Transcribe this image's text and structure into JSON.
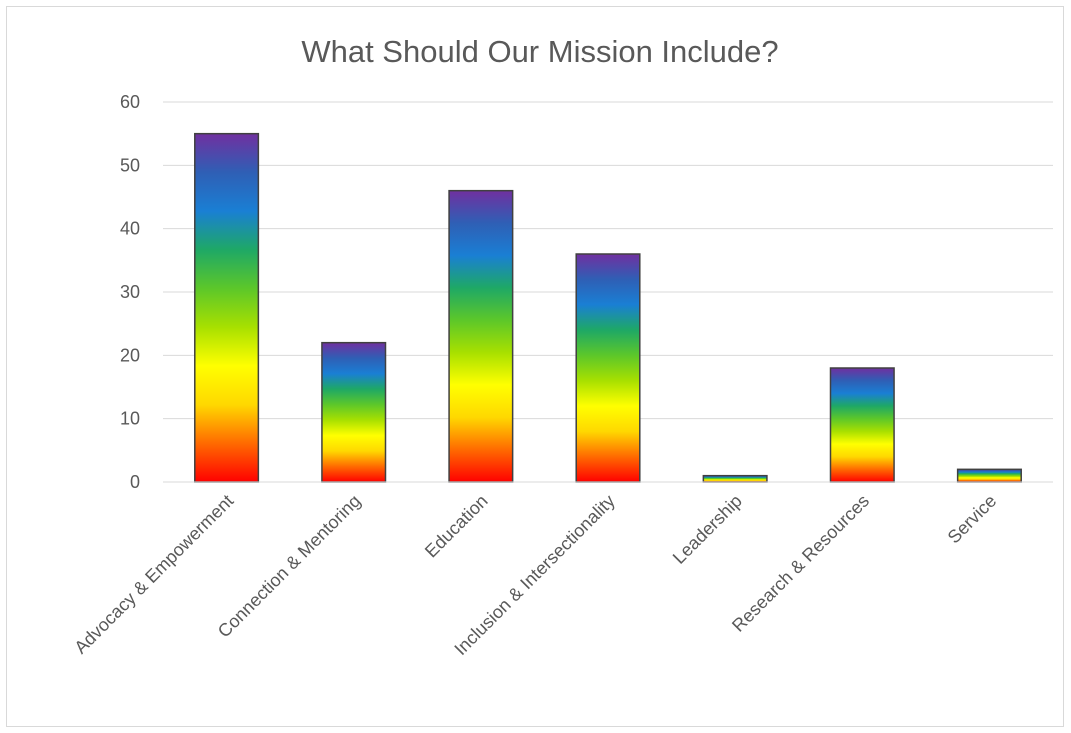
{
  "chart_data": {
    "type": "bar",
    "title": "What Should Our Mission Include?",
    "xlabel": "",
    "ylabel": "",
    "categories": [
      "Advocacy & Empowerment",
      "Connection & Mentoring",
      "Education",
      "Inclusion & Intersectionality",
      "Leadership",
      "Research & Resources",
      "Service"
    ],
    "values": [
      55,
      22,
      46,
      36,
      1,
      18,
      2
    ],
    "ylim": [
      0,
      60
    ],
    "yticks": [
      0,
      10,
      20,
      30,
      40,
      50,
      60
    ],
    "grid": true,
    "legend": "none",
    "colors": {
      "bar_gradient": [
        "#ff0000",
        "#ff6a00",
        "#ffd800",
        "#ffff00",
        "#a8e000",
        "#5cc72a",
        "#1ea866",
        "#1a7fd4",
        "#2f5fb5",
        "#7030a0"
      ],
      "bar_outline": "#404040",
      "gridline": "#d9d9d9",
      "text": "#595959"
    }
  }
}
